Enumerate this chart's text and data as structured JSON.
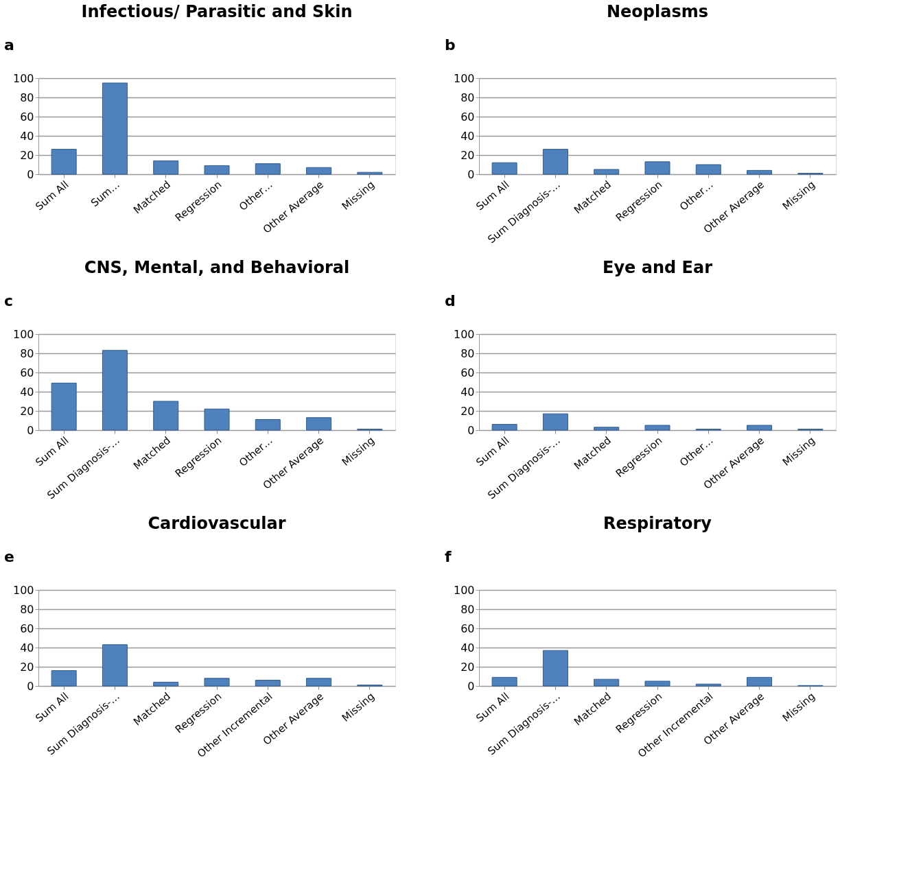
{
  "chart_data": [
    {
      "type": "bar",
      "title": "Infectious/ Parasitic and Skin",
      "annotations": [
        "a"
      ],
      "categories": [
        "Sum All",
        "Sum…",
        "Matched",
        "Regression",
        "Other…",
        "Other Average",
        "Missing"
      ],
      "values": [
        26,
        95,
        14,
        9,
        11,
        7,
        2
      ],
      "color": "#4f81bd",
      "ylim": [
        0,
        100
      ],
      "yticks": [
        0,
        20,
        40,
        60,
        80,
        100
      ],
      "grid": "y"
    },
    {
      "type": "bar",
      "title": "Neoplasms",
      "annotations": [
        "b"
      ],
      "categories": [
        "Sum All",
        "Sum Diagnosis-…",
        "Matched",
        "Regression",
        "Other…",
        "Other Average",
        "Missing"
      ],
      "values": [
        12,
        26,
        5,
        13,
        10,
        4,
        1
      ],
      "color": "#4f81bd",
      "ylim": [
        0,
        100
      ],
      "yticks": [
        0,
        20,
        40,
        60,
        80,
        100
      ],
      "grid": "y"
    },
    {
      "type": "bar",
      "title": "CNS, Mental, and Behavioral",
      "annotations": [
        "c"
      ],
      "categories": [
        "Sum All",
        "Sum Diagnosis-…",
        "Matched",
        "Regression",
        "Other…",
        "Other Average",
        "Missing"
      ],
      "values": [
        49,
        83,
        30,
        22,
        11,
        13,
        1
      ],
      "color": "#4f81bd",
      "ylim": [
        0,
        100
      ],
      "yticks": [
        0,
        20,
        40,
        60,
        80,
        100
      ],
      "grid": "y"
    },
    {
      "type": "bar",
      "title": "Eye and Ear",
      "annotations": [
        "d"
      ],
      "categories": [
        "Sum All",
        "Sum Diagnosis-…",
        "Matched",
        "Regression",
        "Other…",
        "Other Average",
        "Missing"
      ],
      "values": [
        6,
        17,
        3,
        5,
        1,
        5,
        1
      ],
      "color": "#4f81bd",
      "ylim": [
        0,
        100
      ],
      "yticks": [
        0,
        20,
        40,
        60,
        80,
        100
      ],
      "grid": "y"
    },
    {
      "type": "bar",
      "title": "Cardiovascular",
      "annotations": [
        "e"
      ],
      "categories": [
        "Sum All",
        "Sum Diagnosis-…",
        "Matched",
        "Regression",
        "Other Incremental",
        "Other Average",
        "Missing"
      ],
      "values": [
        16,
        43,
        4,
        8,
        6,
        8,
        1
      ],
      "color": "#4f81bd",
      "ylim": [
        0,
        100
      ],
      "yticks": [
        0,
        20,
        40,
        60,
        80,
        100
      ],
      "grid": "y"
    },
    {
      "type": "bar",
      "title": "Respiratory",
      "annotations": [
        "f"
      ],
      "categories": [
        "Sum All",
        "Sum Diagnosis-…",
        "Matched",
        "Regression",
        "Other Incremental",
        "Other Average",
        "Missing"
      ],
      "values": [
        9,
        37,
        7,
        5,
        2,
        9,
        0.5
      ],
      "color": "#4f81bd",
      "ylim": [
        0,
        100
      ],
      "yticks": [
        0,
        20,
        40,
        60,
        80,
        100
      ],
      "grid": "y"
    }
  ]
}
